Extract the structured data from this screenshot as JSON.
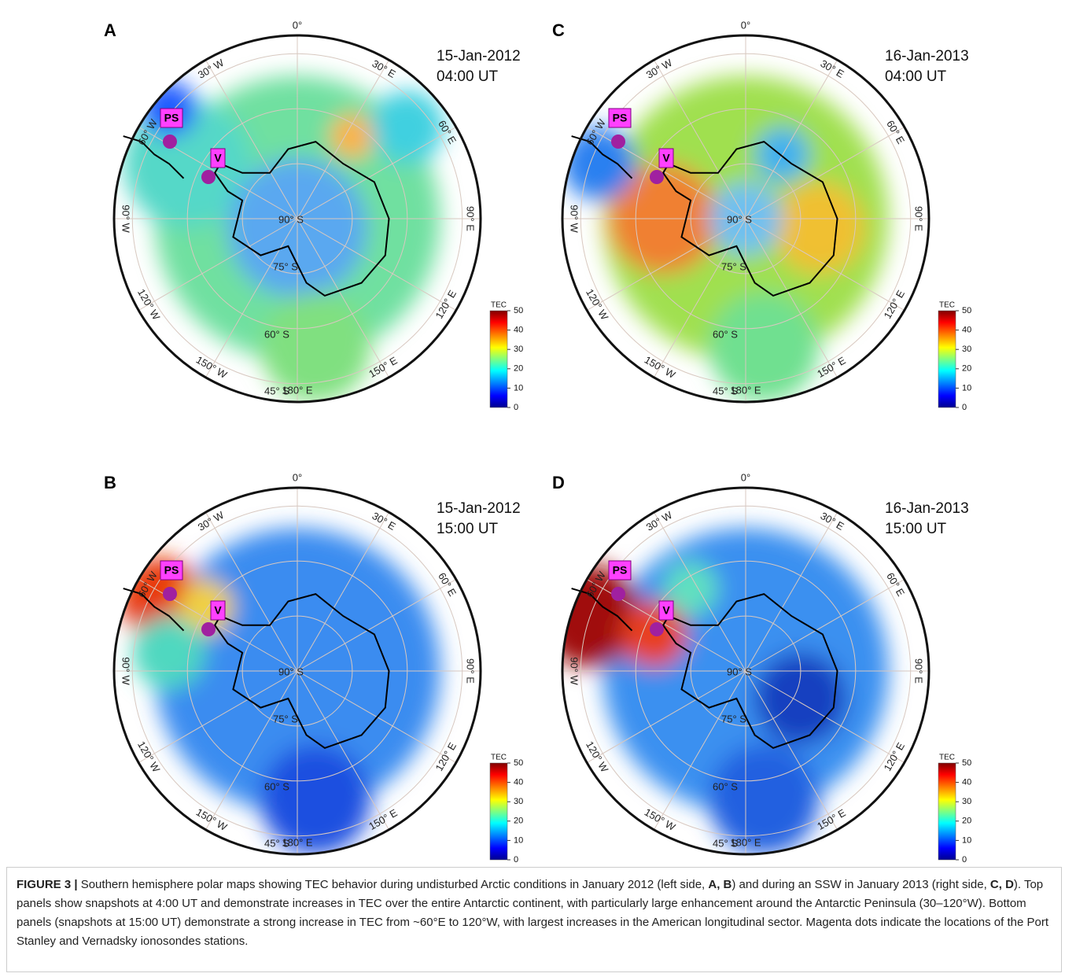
{
  "panels": [
    {
      "label": "A",
      "date": "15-Jan-2012",
      "time": "04:00 UT"
    },
    {
      "label": "C",
      "date": "16-Jan-2013",
      "time": "04:00 UT"
    },
    {
      "label": "B",
      "date": "15-Jan-2012",
      "time": "15:00 UT"
    },
    {
      "label": "D",
      "date": "16-Jan-2013",
      "time": "15:00 UT"
    }
  ],
  "map": {
    "longitude_labels": [
      "0°",
      "30° E",
      "60° E",
      "90° E",
      "120° E",
      "150° E",
      "180° E",
      "150° W",
      "120° W",
      "90° W",
      "60° W",
      "30° W"
    ],
    "latitude_labels": [
      "90° S",
      "75° S",
      "60° S",
      "45° S"
    ],
    "stations": [
      "PS",
      "V"
    ]
  },
  "colorbar": {
    "title": "TEC",
    "lim": [
      0,
      50
    ],
    "ticks": [
      0,
      10,
      20,
      30,
      40,
      50
    ]
  },
  "caption": [
    {
      "text": "FIGURE 3 |",
      "bold": true
    },
    {
      "text": " Southern hemisphere polar maps showing TEC behavior during undisturbed Arctic conditions in January 2012 (left side, ",
      "bold": false
    },
    {
      "text": "A, B",
      "bold": true
    },
    {
      "text": ") and during an SSW in January 2013 (right side, ",
      "bold": false
    },
    {
      "text": "C, D",
      "bold": true
    },
    {
      "text": "). Top panels show snapshots at 4:00 UT and demonstrate increases in TEC over the entire Antarctic continent, with particularly large enhancement around the Antarctic Peninsula (30–120°W). Bottom panels (snapshots at 15:00 UT) demonstrate a strong increase in TEC from ~60°E to 120°W, with largest increases in the American longitudinal sector. Magenta dots indicate the locations of the Port Stanley and Vernadsky ionosondes stations.",
      "bold": false
    }
  ]
}
